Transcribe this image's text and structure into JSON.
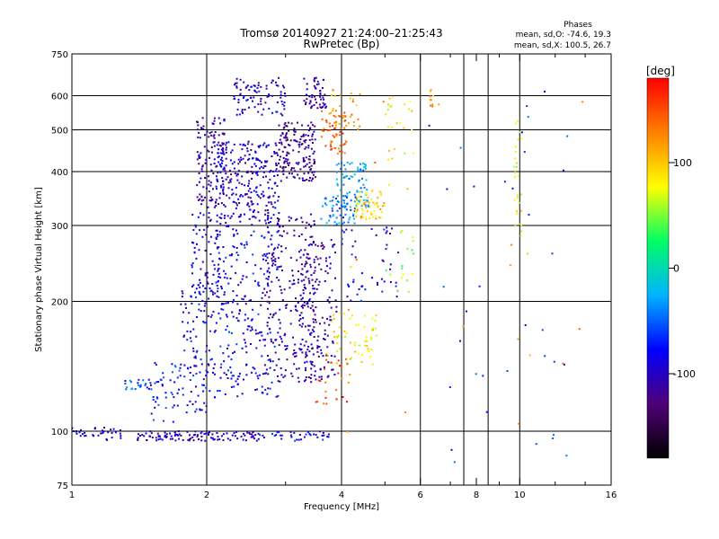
{
  "chart_data": {
    "type": "scatter",
    "title": "Tromsø 20140927 21:24:00–21:25:43",
    "subtitle": "RwPretec (Bp)",
    "phases_label": "Phases",
    "phases_stats": [
      "mean, sd,O: -74.6, 19.3",
      "mean, sd,X: 100.5, 26.7"
    ],
    "xlabel": "Frequency [MHz]",
    "ylabel": "Stationary phase Virtual Height [km]",
    "xscale": "log",
    "yscale": "log",
    "xlim": [
      1,
      16
    ],
    "ylim": [
      75,
      750
    ],
    "x_ticks": [
      1,
      2,
      4,
      6,
      8,
      10,
      16
    ],
    "x_minor": [
      3,
      5,
      7,
      9,
      12,
      14
    ],
    "x_grid": [
      2,
      4,
      6,
      7.5,
      8.5,
      10
    ],
    "y_ticks": [
      75,
      100,
      200,
      300,
      400,
      500,
      600,
      750
    ],
    "y_grid": [
      100,
      200,
      300,
      400,
      500,
      600
    ],
    "grid": true,
    "colorbar": {
      "label": "[deg]",
      "range": [
        -180,
        180
      ],
      "ticks": [
        100,
        0,
        -100
      ],
      "colors": [
        "#000000",
        "#500078",
        "#0000ff",
        "#00b4ff",
        "#00ff64",
        "#ffff00",
        "#ff8000",
        "#ff0000"
      ]
    },
    "clusters": [
      {
        "f": [
          1.0,
          1.3
        ],
        "h": [
          95,
          102
        ],
        "phase": -95,
        "n": 35
      },
      {
        "f": [
          1.4,
          2.6
        ],
        "h": [
          95,
          100
        ],
        "phase": -105,
        "n": 110
      },
      {
        "f": [
          2.6,
          3.8
        ],
        "h": [
          95,
          100
        ],
        "phase": -85,
        "n": 40
      },
      {
        "f": [
          1.3,
          1.5
        ],
        "h": [
          125,
          132
        ],
        "phase": -60,
        "n": 22
      },
      {
        "f": [
          1.5,
          1.75
        ],
        "h": [
          105,
          145
        ],
        "phase": -75,
        "n": 45
      },
      {
        "f": [
          1.75,
          2.1
        ],
        "h": [
          110,
          220
        ],
        "phase": -85,
        "n": 120
      },
      {
        "f": [
          1.85,
          2.15
        ],
        "h": [
          210,
          330
        ],
        "phase": -90,
        "n": 70
      },
      {
        "f": [
          1.9,
          2.2
        ],
        "h": [
          330,
          540
        ],
        "phase": -110,
        "n": 120
      },
      {
        "f": [
          2.1,
          2.9
        ],
        "h": [
          120,
          300
        ],
        "phase": -85,
        "n": 260
      },
      {
        "f": [
          2.1,
          2.9
        ],
        "h": [
          300,
          470
        ],
        "phase": -100,
        "n": 280
      },
      {
        "f": [
          2.3,
          3.0
        ],
        "h": [
          540,
          660
        ],
        "phase": -95,
        "n": 90
      },
      {
        "f": [
          2.7,
          3.5
        ],
        "h": [
          130,
          320
        ],
        "phase": -110,
        "n": 200
      },
      {
        "f": [
          2.9,
          3.5
        ],
        "h": [
          380,
          520
        ],
        "phase": -115,
        "n": 160
      },
      {
        "f": [
          3.2,
          3.9
        ],
        "h": [
          130,
          280
        ],
        "phase": -105,
        "n": 160
      },
      {
        "f": [
          3.3,
          3.7
        ],
        "h": [
          560,
          660
        ],
        "phase": -110,
        "n": 55
      },
      {
        "f": [
          3.6,
          4.1
        ],
        "h": [
          440,
          560
        ],
        "phase": 140,
        "n": 60
      },
      {
        "f": [
          3.8,
          4.4
        ],
        "h": [
          500,
          620
        ],
        "phase": 120,
        "n": 25
      },
      {
        "f": [
          3.9,
          4.6
        ],
        "h": [
          330,
          420
        ],
        "phase": -30,
        "n": 90
      },
      {
        "f": [
          3.6,
          4.3
        ],
        "h": [
          300,
          350
        ],
        "phase": -40,
        "n": 50
      },
      {
        "f": [
          4.3,
          5.0
        ],
        "h": [
          310,
          360
        ],
        "phase": 95,
        "n": 60
      },
      {
        "f": [
          3.7,
          4.8
        ],
        "h": [
          140,
          190
        ],
        "phase": 80,
        "n": 60
      },
      {
        "f": [
          3.5,
          4.2
        ],
        "h": [
          115,
          150
        ],
        "phase": 150,
        "n": 25
      },
      {
        "f": [
          4.0,
          5.4
        ],
        "h": [
          200,
          300
        ],
        "phase": -85,
        "n": 50
      },
      {
        "f": [
          5.0,
          5.8
        ],
        "h": [
          360,
          600
        ],
        "phase": 80,
        "n": 25
      },
      {
        "f": [
          5.0,
          5.8
        ],
        "h": [
          200,
          300
        ],
        "phase": 60,
        "n": 18
      },
      {
        "f": [
          6.3,
          6.6
        ],
        "h": [
          560,
          620
        ],
        "phase": 110,
        "n": 10
      },
      {
        "f": [
          9.7,
          10.1
        ],
        "h": [
          270,
          560
        ],
        "phase": 80,
        "n": 28
      },
      {
        "f": [
          6.0,
          14.0
        ],
        "h": [
          80,
          640
        ],
        "phase": -70,
        "n": 35
      },
      {
        "f": [
          4.0,
          14.0
        ],
        "h": [
          80,
          600
        ],
        "phase": 120,
        "n": 18
      }
    ]
  }
}
